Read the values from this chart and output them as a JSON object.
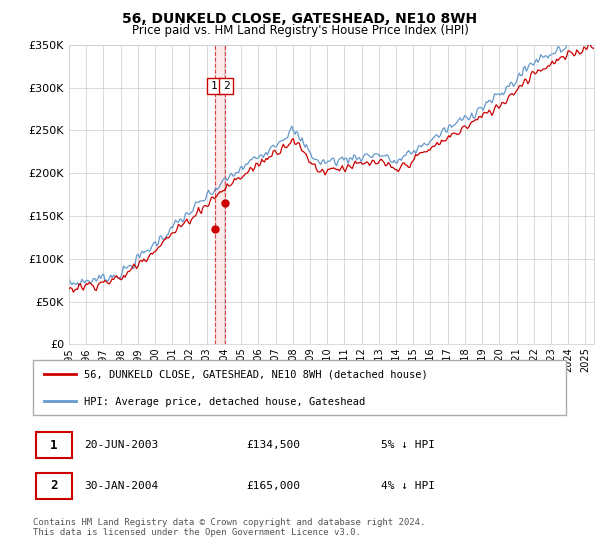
{
  "title": "56, DUNKELD CLOSE, GATESHEAD, NE10 8WH",
  "subtitle": "Price paid vs. HM Land Registry's House Price Index (HPI)",
  "legend_line1": "56, DUNKELD CLOSE, GATESHEAD, NE10 8WH (detached house)",
  "legend_line2": "HPI: Average price, detached house, Gateshead",
  "transaction1_date": "20-JUN-2003",
  "transaction1_price": "£134,500",
  "transaction1_hpi": "5% ↓ HPI",
  "transaction2_date": "30-JAN-2004",
  "transaction2_price": "£165,000",
  "transaction2_hpi": "4% ↓ HPI",
  "footer": "Contains HM Land Registry data © Crown copyright and database right 2024.\nThis data is licensed under the Open Government Licence v3.0.",
  "red_color": "#cc0000",
  "blue_color": "#6699cc",
  "ylim_min": 0,
  "ylim_max": 350000,
  "yticks": [
    0,
    50000,
    100000,
    150000,
    200000,
    250000,
    300000,
    350000
  ],
  "ytick_labels": [
    "£0",
    "£50K",
    "£100K",
    "£150K",
    "£200K",
    "£250K",
    "£300K",
    "£350K"
  ],
  "transaction1_x": 2003.47,
  "transaction1_y": 134500,
  "transaction2_x": 2004.08,
  "transaction2_y": 165000,
  "xmin": 1995.0,
  "xmax": 2025.5
}
